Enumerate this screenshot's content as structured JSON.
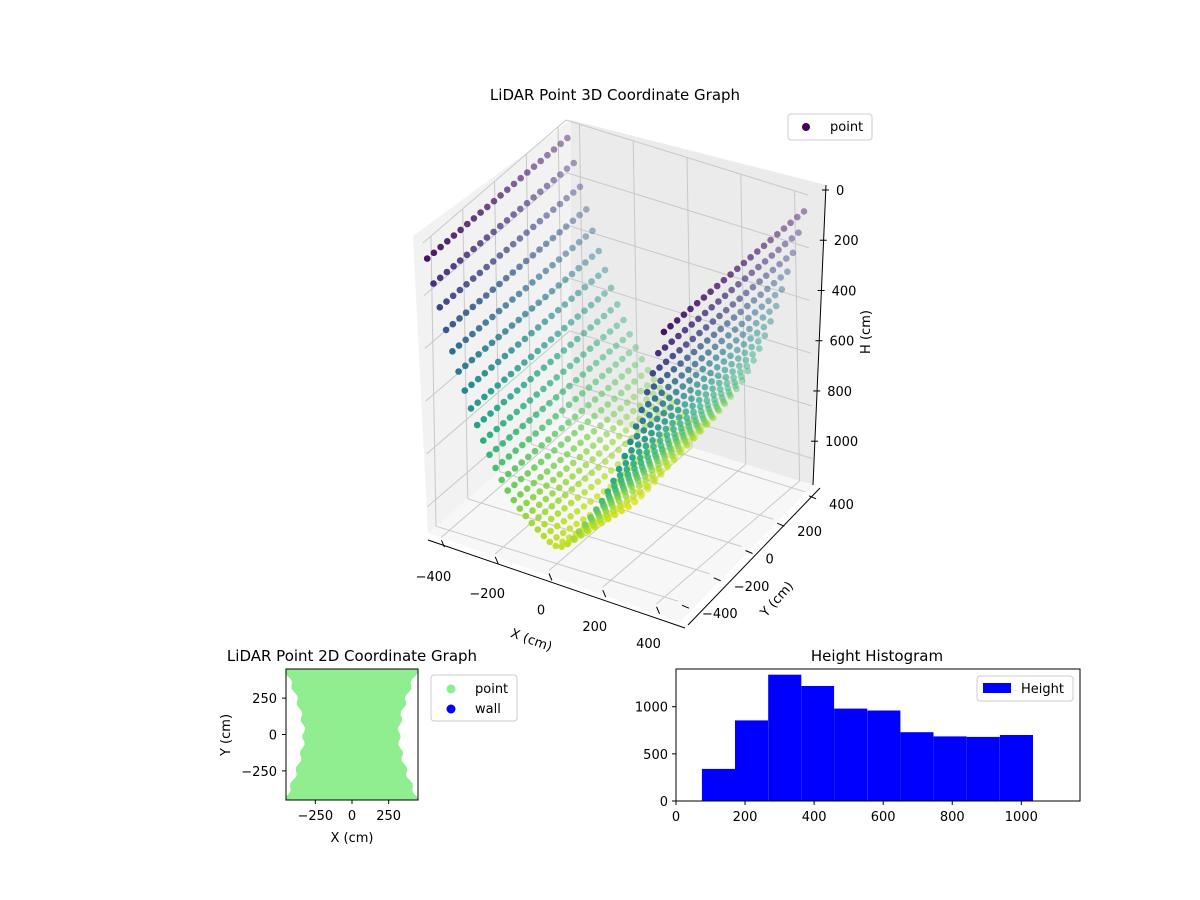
{
  "chart_data": [
    {
      "type": "scatter",
      "projection": "3d",
      "title": "LiDAR Point 3D Coordinate Graph",
      "xlabel": "X (cm)",
      "ylabel": "Y (cm)",
      "zlabel": "H (cm)",
      "xlim": [
        -450,
        450
      ],
      "ylim": [
        -450,
        450
      ],
      "zlim": [
        1100,
        0
      ],
      "z_inverted": true,
      "x_ticks": [
        "−400",
        "−200",
        "0",
        "200",
        "400"
      ],
      "y_ticks": [
        "−400",
        "−200",
        "0",
        "200",
        "400"
      ],
      "z_ticks": [
        "0",
        "200",
        "400",
        "600",
        "800",
        "1000"
      ],
      "colormap": "viridis",
      "grid": true,
      "legend": {
        "position": "top-right",
        "entries": [
          {
            "label": "point",
            "color": "#440154",
            "marker": "circle"
          }
        ]
      },
      "surface_model": "curved trough: height rises from ~50 cm at the edges to ~1050 cm in the middle, with a deeper ridge running through the center"
    },
    {
      "type": "scatter",
      "title": "LiDAR Point 2D Coordinate Graph",
      "xlabel": "X (cm)",
      "ylabel": "Y (cm)",
      "xlim": [
        -450,
        450
      ],
      "ylim": [
        -450,
        450
      ],
      "x_ticks": [
        "−250",
        "0",
        "250"
      ],
      "y_ticks": [
        "250",
        "0",
        "−250"
      ],
      "legend": {
        "position": "right",
        "entries": [
          {
            "label": "point",
            "color": "#90ee90"
          },
          {
            "label": "wall",
            "color": "#0000ff"
          }
        ]
      },
      "series": [
        {
          "name": "point",
          "color": "#90ee90"
        },
        {
          "name": "wall",
          "color": "#0000ff"
        }
      ]
    },
    {
      "type": "bar",
      "subtype": "histogram",
      "title": "Height Histogram",
      "xlim": [
        0,
        1170
      ],
      "ylim": [
        0,
        1400
      ],
      "x_ticks": [
        "0",
        "200",
        "400",
        "600",
        "800",
        "1000"
      ],
      "y_ticks": [
        "0",
        "500",
        "1000"
      ],
      "color": "#0000ff",
      "legend": {
        "position": "top-right",
        "entries": [
          {
            "label": "Height",
            "color": "#0000ff"
          }
        ]
      },
      "series": [
        {
          "name": "Height"
        }
      ],
      "bin_edges": [
        75,
        171,
        267,
        363,
        458,
        554,
        650,
        746,
        842,
        938,
        1034
      ],
      "counts": [
        340,
        855,
        1340,
        1220,
        980,
        960,
        730,
        685,
        680,
        700
      ]
    }
  ]
}
